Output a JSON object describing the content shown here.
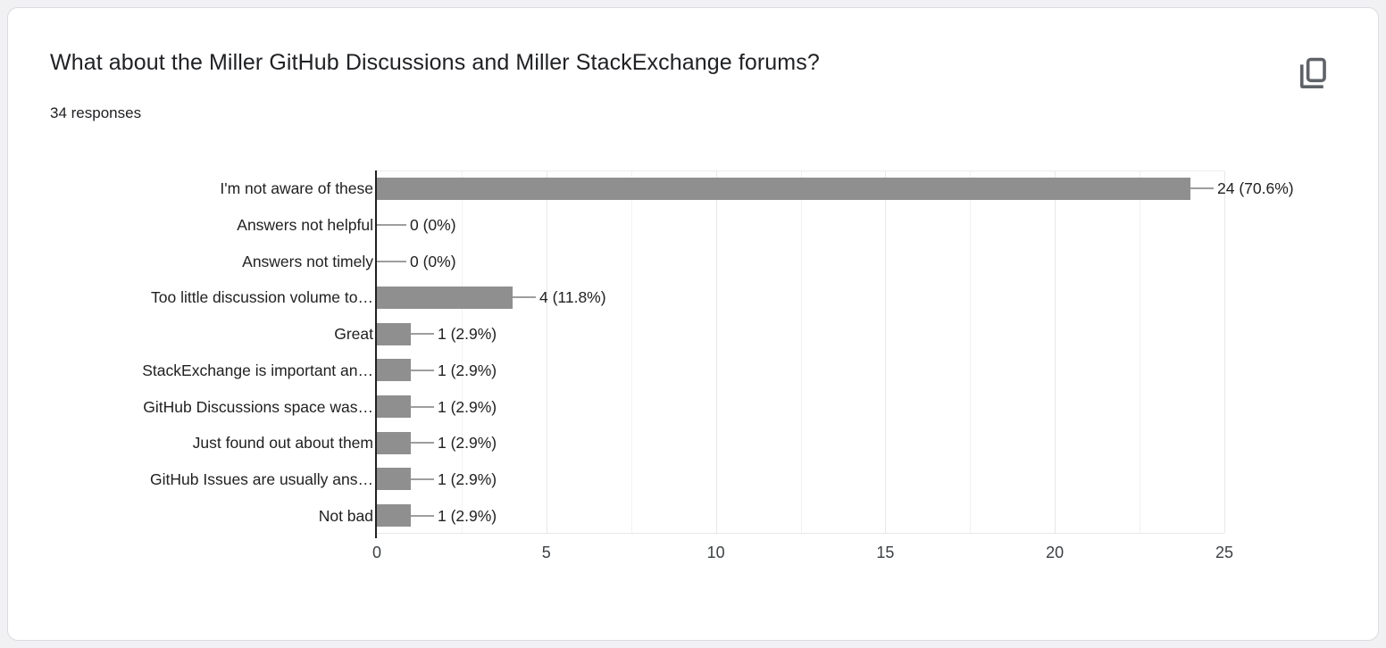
{
  "header": {
    "title": "What about the Miller GitHub Discussions and Miller StackExchange forums?",
    "responses_count": "34 responses",
    "copy_button_icon": "copy-icon"
  },
  "theme": {
    "card_background": "#ffffff",
    "card_border": "#dadce0",
    "page_background": "#f1f1f3",
    "icon_color": "#5f6368"
  },
  "chart_data": {
    "type": "bar",
    "orientation": "horizontal",
    "title": "What about the Miller GitHub Discussions and Miller StackExchange forums?",
    "subtitle": "34 responses",
    "legend": "none",
    "categories": [
      "I'm not aware of these",
      "Answers not helpful",
      "Answers not timely",
      "Too little discussion volume to…",
      "Great",
      "StackExchange is important an…",
      "GitHub Discussions space was…",
      "Just found out about them",
      "GitHub Issues are usually ans…",
      "Not bad"
    ],
    "values": [
      24,
      0,
      0,
      4,
      1,
      1,
      1,
      1,
      1,
      1
    ],
    "value_labels": [
      "24 (70.6%)",
      "0 (0%)",
      "0 (0%)",
      "4 (11.8%)",
      "1 (2.9%)",
      "1 (2.9%)",
      "1 (2.9%)",
      "1 (2.9%)",
      "1 (2.9%)",
      "1 (2.9%)"
    ],
    "x_ticks": [
      0,
      5,
      10,
      15,
      20,
      25
    ],
    "xlim": [
      0,
      25
    ],
    "grid": "vertical; minor step 2.5, major step 5",
    "bar_color": "#8f8f8f",
    "leader_color": "#9e9e9e",
    "axis_color": "#212121",
    "label_color": "#212121",
    "tick_color": "#3c4043",
    "gridline_minor_color": "#f1f1f1",
    "gridline_major_color": "#e8e8e8"
  }
}
